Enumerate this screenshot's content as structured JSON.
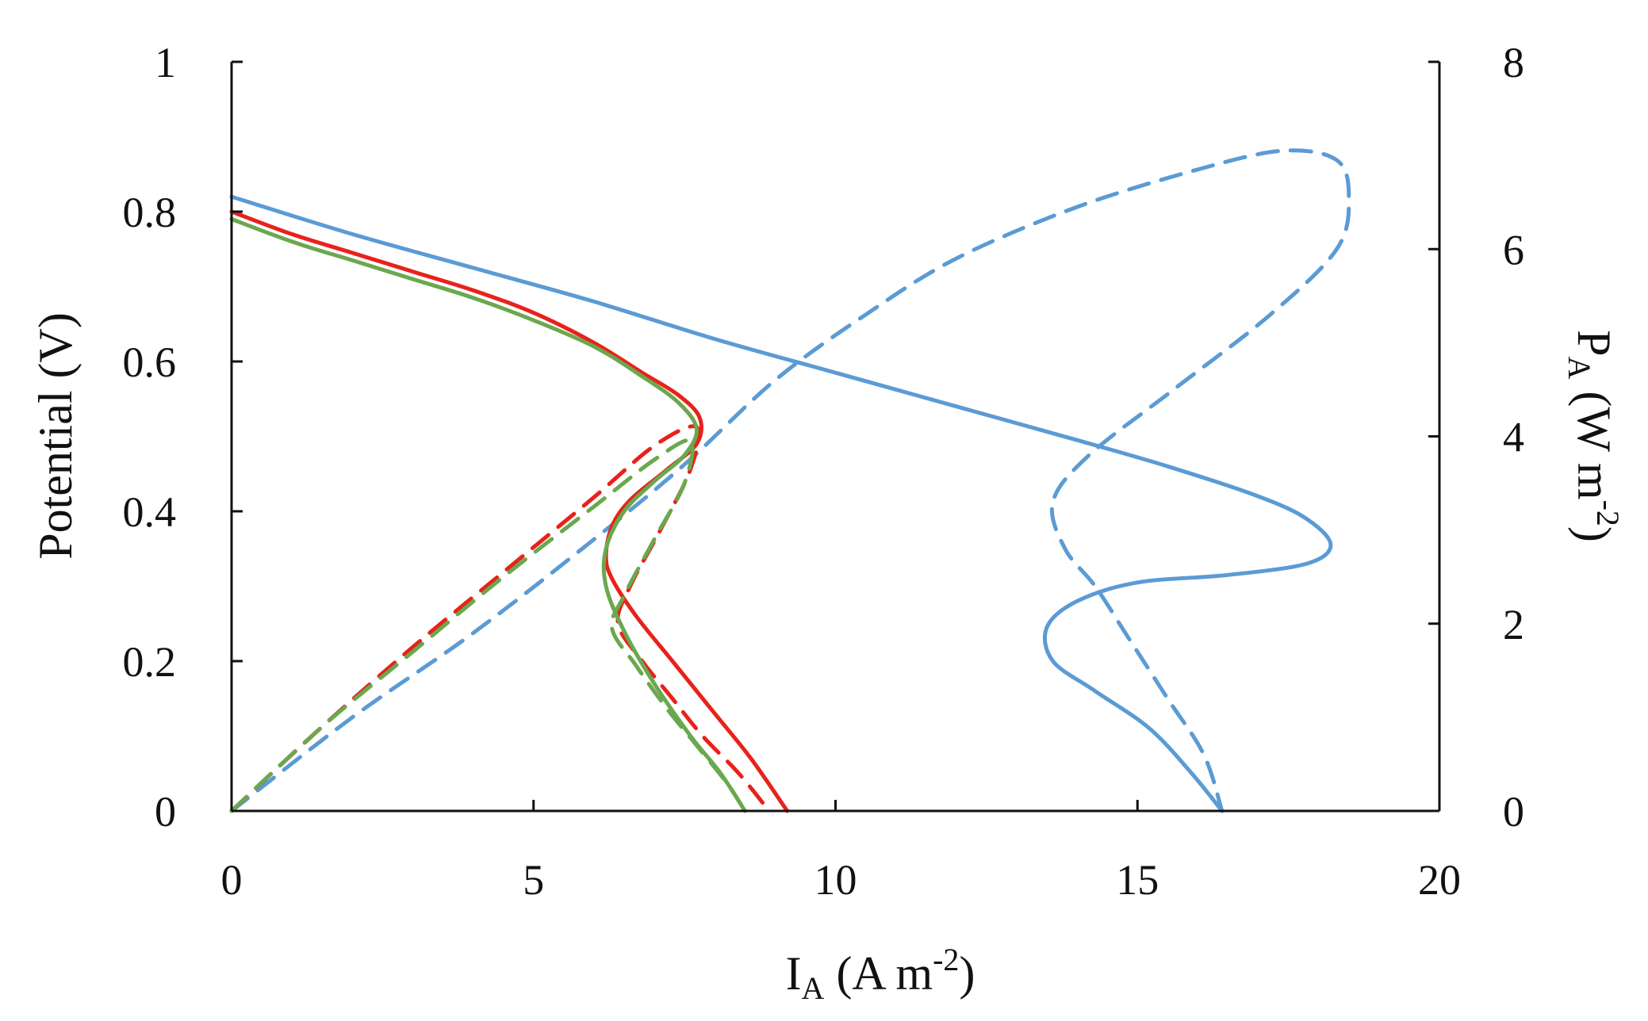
{
  "chart_data": {
    "type": "line",
    "xlabel": {
      "main": "I",
      "sub": "A",
      "rest": " (A m",
      "sup": "-2",
      "close": ")"
    },
    "ylabel_left": "Potential (V)",
    "ylabel_right": {
      "main": "P",
      "sub": "A",
      "rest": " (W m",
      "sup": "-2",
      "close": ")"
    },
    "xlim": [
      0,
      20
    ],
    "ylim_left": [
      0,
      1
    ],
    "ylim_right": [
      0,
      8
    ],
    "x_ticks": [
      "0",
      "5",
      "10",
      "15",
      "20"
    ],
    "x_tick_values": [
      0,
      5,
      10,
      15,
      20
    ],
    "y_left_ticks": [
      "0",
      "0.2",
      "0.4",
      "0.6",
      "0.8",
      "1"
    ],
    "y_left_tick_values": [
      0,
      0.2,
      0.4,
      0.6,
      0.8,
      1.0
    ],
    "y_right_ticks": [
      "0",
      "2",
      "4",
      "6",
      "8"
    ],
    "y_right_tick_values": [
      0,
      2,
      4,
      6,
      8
    ],
    "grid": false,
    "legend": "none",
    "series": [
      {
        "color": "#5b9bd5",
        "dash": false,
        "axis": "left",
        "points": [
          [
            0.0,
            0.82
          ],
          [
            2,
            0.77
          ],
          [
            4,
            0.725
          ],
          [
            6,
            0.68
          ],
          [
            8,
            0.63
          ],
          [
            10,
            0.585
          ],
          [
            12,
            0.54
          ],
          [
            14,
            0.495
          ],
          [
            15.5,
            0.46
          ],
          [
            17,
            0.42
          ],
          [
            17.8,
            0.39
          ],
          [
            18.2,
            0.355
          ],
          [
            17.8,
            0.33
          ],
          [
            16.5,
            0.315
          ],
          [
            15.0,
            0.305
          ],
          [
            14.0,
            0.28
          ],
          [
            13.5,
            0.245
          ],
          [
            13.6,
            0.2
          ],
          [
            14.3,
            0.16
          ],
          [
            15.2,
            0.11
          ],
          [
            15.9,
            0.05
          ],
          [
            16.4,
            0.0
          ]
        ]
      },
      {
        "color": "#5b9bd5",
        "dash": true,
        "axis": "right",
        "points": [
          [
            0,
            0.0
          ],
          [
            2,
            1.0
          ],
          [
            4,
            1.9
          ],
          [
            6,
            2.9
          ],
          [
            7.5,
            3.7
          ],
          [
            9,
            4.6
          ],
          [
            10.5,
            5.3
          ],
          [
            12,
            5.9
          ],
          [
            14,
            6.45
          ],
          [
            16,
            6.85
          ],
          [
            17.4,
            7.05
          ],
          [
            18.3,
            6.95
          ],
          [
            18.5,
            6.55
          ],
          [
            18.3,
            6.0
          ],
          [
            17.2,
            5.3
          ],
          [
            15.6,
            4.5
          ],
          [
            14.2,
            3.8
          ],
          [
            13.6,
            3.3
          ],
          [
            13.8,
            2.8
          ],
          [
            14.3,
            2.4
          ],
          [
            14.8,
            1.9
          ],
          [
            15.5,
            1.2
          ],
          [
            16.1,
            0.6
          ],
          [
            16.4,
            0.0
          ]
        ]
      },
      {
        "color": "#e8221a",
        "dash": false,
        "axis": "left",
        "points": [
          [
            0,
            0.8
          ],
          [
            1,
            0.77
          ],
          [
            2,
            0.745
          ],
          [
            3,
            0.72
          ],
          [
            4,
            0.695
          ],
          [
            5,
            0.665
          ],
          [
            6,
            0.625
          ],
          [
            6.8,
            0.585
          ],
          [
            7.4,
            0.555
          ],
          [
            7.75,
            0.525
          ],
          [
            7.7,
            0.49
          ],
          [
            7.2,
            0.455
          ],
          [
            6.6,
            0.415
          ],
          [
            6.3,
            0.38
          ],
          [
            6.2,
            0.34
          ],
          [
            6.3,
            0.31
          ],
          [
            6.7,
            0.26
          ],
          [
            7.3,
            0.2
          ],
          [
            8.0,
            0.13
          ],
          [
            8.6,
            0.07
          ],
          [
            9.2,
            0.0
          ]
        ]
      },
      {
        "color": "#e8221a",
        "dash": true,
        "axis": "right",
        "points": [
          [
            0,
            0.0
          ],
          [
            1.5,
            0.9
          ],
          [
            3,
            1.75
          ],
          [
            4.5,
            2.55
          ],
          [
            6,
            3.35
          ],
          [
            7,
            3.9
          ],
          [
            7.7,
            4.1
          ],
          [
            7.6,
            3.65
          ],
          [
            7.1,
            3.0
          ],
          [
            6.6,
            2.4
          ],
          [
            6.4,
            2.0
          ],
          [
            6.8,
            1.6
          ],
          [
            7.3,
            1.2
          ],
          [
            7.8,
            0.8
          ],
          [
            8.4,
            0.4
          ],
          [
            8.9,
            0.0
          ]
        ]
      },
      {
        "color": "#6aa84f",
        "dash": false,
        "axis": "left",
        "points": [
          [
            0,
            0.79
          ],
          [
            1,
            0.76
          ],
          [
            2,
            0.735
          ],
          [
            3,
            0.71
          ],
          [
            4,
            0.685
          ],
          [
            5,
            0.655
          ],
          [
            6,
            0.62
          ],
          [
            6.8,
            0.58
          ],
          [
            7.4,
            0.545
          ],
          [
            7.7,
            0.51
          ],
          [
            7.5,
            0.475
          ],
          [
            7.0,
            0.44
          ],
          [
            6.5,
            0.4
          ],
          [
            6.2,
            0.35
          ],
          [
            6.2,
            0.3
          ],
          [
            6.5,
            0.24
          ],
          [
            7.0,
            0.17
          ],
          [
            7.6,
            0.1
          ],
          [
            8.1,
            0.05
          ],
          [
            8.5,
            0.0
          ]
        ]
      },
      {
        "color": "#6aa84f",
        "dash": true,
        "axis": "right",
        "points": [
          [
            0,
            0.0
          ],
          [
            1.5,
            0.9
          ],
          [
            3,
            1.7
          ],
          [
            4.5,
            2.5
          ],
          [
            6,
            3.25
          ],
          [
            7,
            3.75
          ],
          [
            7.6,
            3.95
          ],
          [
            7.5,
            3.5
          ],
          [
            7.0,
            2.9
          ],
          [
            6.5,
            2.3
          ],
          [
            6.3,
            1.95
          ],
          [
            6.7,
            1.55
          ],
          [
            7.2,
            1.1
          ],
          [
            7.7,
            0.7
          ],
          [
            8.2,
            0.3
          ],
          [
            8.5,
            0.0
          ]
        ]
      }
    ]
  }
}
